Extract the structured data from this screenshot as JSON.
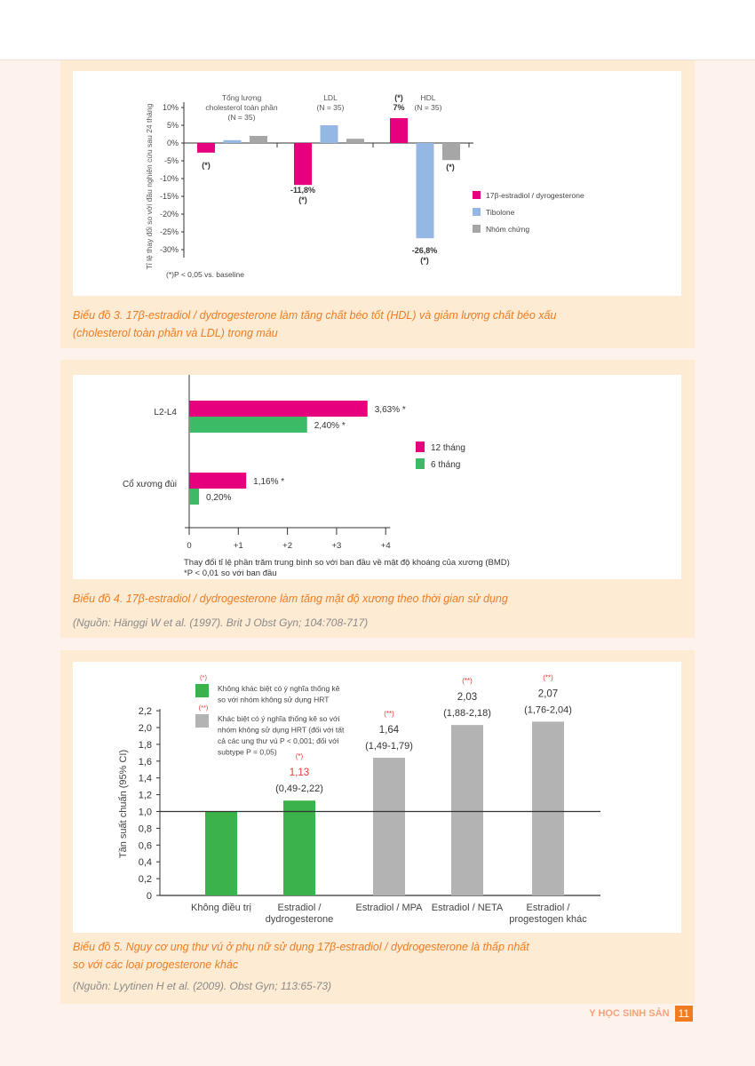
{
  "chart_data": [
    {
      "type": "bar",
      "title": "",
      "ylabel": "Tỉ lệ thay đổi so với đầu nghiên cứu sau 24 tháng",
      "ylim": [
        -30,
        10
      ],
      "yticks": [
        "10%",
        "5%",
        "0%",
        "-5%",
        "-10%",
        "-15%",
        "-20%",
        "-25%",
        "-30%"
      ],
      "categories": [
        "Tổng lượng|cholesterol toàn phần|(N = 35)",
        "LDL|(N = 35)",
        "HDL|(N = 35)"
      ],
      "series": [
        {
          "name": "17β-estradiol / dyrogesterone",
          "color": "#e6007e",
          "values": [
            -2.7,
            -11.8,
            7
          ]
        },
        {
          "name": "Tibolone",
          "color": "#94b8e3",
          "values": [
            0.8,
            5,
            -26.8
          ]
        },
        {
          "name": "Nhóm chứng",
          "color": "#a6a6a6",
          "values": [
            2,
            1.2,
            -4.8
          ]
        }
      ],
      "annotations": [
        {
          "series": 0,
          "cat": 0,
          "text": "(*)"
        },
        {
          "series": 0,
          "cat": 1,
          "text": "-11,8%|(*)"
        },
        {
          "series": 0,
          "cat": 2,
          "text": "(*)|7%"
        },
        {
          "series": 1,
          "cat": 2,
          "text": "-26,8%|(*)"
        },
        {
          "series": 2,
          "cat": 2,
          "text": "(*)"
        }
      ],
      "legend": "right",
      "footnote": "(*)P < 0,05 vs. baseline"
    },
    {
      "type": "bar",
      "orientation": "horizontal",
      "categories": [
        "L2-L4",
        "Cổ xương đùi"
      ],
      "series": [
        {
          "name": "12 tháng",
          "color": "#e6007e",
          "values": [
            3.63,
            1.16
          ],
          "labels": [
            "3,63% *",
            "1,16% *"
          ]
        },
        {
          "name": "6 tháng",
          "color": "#3dba66",
          "values": [
            2.4,
            0.2
          ],
          "labels": [
            "2,40% *",
            "0,20%"
          ]
        }
      ],
      "xlim": [
        0,
        4
      ],
      "xticks": [
        "0",
        "+1",
        "+2",
        "+3",
        "+4"
      ],
      "xlabel": "Thay đổi tỉ lệ phần trăm trung bình so với ban đầu về mật độ khoáng của xương (BMD)",
      "footnote": "*P < 0,01 so với ban đầu",
      "legend": "right"
    },
    {
      "type": "bar",
      "ylabel": "Tần suất chuẩn (95% CI)",
      "ylim": [
        0,
        2.2
      ],
      "yticks": [
        "0",
        "0,2",
        "0,4",
        "0,6",
        "0,8",
        "1,0",
        "1,2",
        "1,4",
        "1,6",
        "1,8",
        "2,0",
        "2,2"
      ],
      "reference_line": 1.0,
      "categories": [
        "Không điều trị",
        "Estradiol /|dydrogesterone",
        "Estradiol / MPA",
        "Estradiol / NETA",
        "Estradiol /|progestogen khác"
      ],
      "values": [
        1.0,
        1.13,
        1.64,
        2.03,
        2.07
      ],
      "colors": [
        "#3bb34a",
        "#3bb34a",
        "#b3b3b3",
        "#b3b3b3",
        "#b3b3b3"
      ],
      "value_labels": [
        "",
        "1,13",
        "1,64",
        "2,03",
        "2,07"
      ],
      "ci_labels": [
        "",
        "(0,49-2,22)",
        "(1,49-1,79)",
        "(1,88-2,18)",
        "(1,76-2,04)"
      ],
      "sig_labels": [
        "",
        "(*)",
        "(**)",
        "(**)",
        "(**)"
      ],
      "legend": [
        {
          "mark": "(*)",
          "color": "#3bb34a",
          "text": "Không khác biệt có ý nghĩa thống kê|so với nhóm không sử dụng HRT"
        },
        {
          "mark": "(**)",
          "color": "#b3b3b3",
          "text": "Khác biệt có ý nghĩa thống kê so với|nhóm không sử dụng HRT (đối với tất|cả các ung thư vú P < 0,001; đối với|subtype P = 0,05)"
        }
      ]
    }
  ],
  "captions": {
    "fig3": [
      "Biểu đồ 3. 17β-estradiol / dydrogesterone làm tăng chất béo tốt (HDL) và giảm lượng chất béo xấu",
      "(cholesterol toàn phần và LDL) trong máu"
    ],
    "fig4": "Biểu đồ 4. 17β-estradiol / dydrogesterone làm tăng mật độ xương theo thời gian sử dụng",
    "fig4_source": "(Nguồn: Hänggi W et al. (1997). Brit J Obst Gyn; 104:708-717)",
    "fig5": [
      "Biểu đồ 5. Nguy cơ ung thư vú ở phụ nữ sử dụng 17β-estradiol / dydrogesterone là thấp nhất",
      "so với các loại progesterone khác"
    ],
    "fig5_source": "(Nguồn: Lyytinen H et al. (2009). Obst Gyn; 113:65-73)"
  },
  "footer": {
    "journal": "Y HỌC SINH SẢN",
    "page": "11"
  }
}
